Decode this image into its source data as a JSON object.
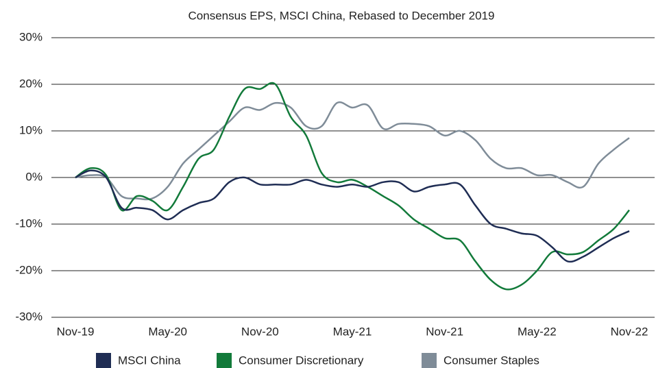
{
  "chart_data": {
    "type": "line",
    "title": "Consensus EPS, MSCI China, Rebased to December 2019",
    "categories": [
      "Nov-19",
      null,
      null,
      null,
      null,
      null,
      "May-20",
      null,
      null,
      null,
      null,
      null,
      "Nov-20",
      null,
      null,
      null,
      null,
      null,
      "May-21",
      null,
      null,
      null,
      null,
      null,
      "Nov-21",
      null,
      null,
      null,
      null,
      null,
      "May-22",
      null,
      null,
      null,
      null,
      null,
      "Nov-22"
    ],
    "series": [
      {
        "name": "MSCI China",
        "color": "#1f2d54",
        "values": [
          0,
          1.5,
          0,
          -6.5,
          -6.5,
          -7,
          -9,
          -7,
          -5.5,
          -4.5,
          -1,
          0,
          -1.5,
          -1.5,
          -1.5,
          -0.5,
          -1.5,
          -2,
          -1.5,
          -2,
          -1,
          -1,
          -3,
          -2,
          -1.5,
          -1.5,
          -6,
          -10,
          -11,
          -12,
          -12.5,
          -15,
          -18,
          -17,
          -15,
          -13,
          -11.5
        ]
      },
      {
        "name": "Consumer Discretionary",
        "color": "#127a3a",
        "values": [
          0,
          2,
          0.5,
          -7,
          -4,
          -5,
          -7,
          -2,
          4,
          6,
          13,
          19,
          19,
          20,
          13,
          9,
          1,
          -1,
          -0.5,
          -2,
          -4,
          -6,
          -9,
          -11,
          -13,
          -13.5,
          -18,
          -22,
          -24,
          -23,
          -20,
          -16,
          -16.5,
          -16,
          -13.5,
          -11,
          -7
        ]
      },
      {
        "name": "Consumer Staples",
        "color": "#7f8c98",
        "values": [
          0,
          0.5,
          0,
          -4,
          -4.5,
          -4.5,
          -2,
          3,
          6,
          9,
          12,
          15,
          14.5,
          16,
          15,
          11,
          11,
          16,
          15,
          15.5,
          10.5,
          11.5,
          11.5,
          11,
          9,
          10,
          8,
          4,
          2,
          2,
          0.5,
          0.5,
          -1,
          -2,
          3,
          6,
          8.5
        ]
      }
    ],
    "ylim": [
      -30,
      30
    ],
    "yticks": [
      {
        "value": -30,
        "label": "-30%"
      },
      {
        "value": -20,
        "label": "-20%"
      },
      {
        "value": -10,
        "label": "-10%"
      },
      {
        "value": 0,
        "label": "0%"
      },
      {
        "value": 10,
        "label": "10%"
      },
      {
        "value": 20,
        "label": "20%"
      },
      {
        "value": 30,
        "label": "30%"
      }
    ],
    "grid": true,
    "legend": "bottom"
  }
}
